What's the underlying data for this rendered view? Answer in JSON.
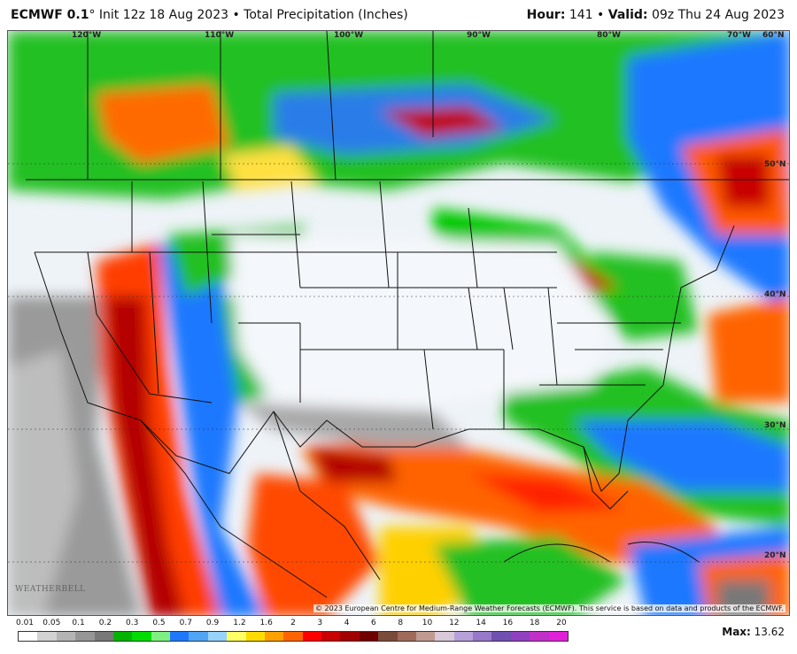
{
  "header": {
    "model": "ECMWF 0.1",
    "init": "° Init 12z 18 Aug 2023 • Total Precipitation (Inches)",
    "hour_label": "Hour:",
    "hour_value": " 141 • ",
    "valid_label": "Valid:",
    "valid_value": " 09z Thu 24 Aug 2023"
  },
  "map": {
    "lon_labels": [
      "120°W",
      "110°W",
      "100°W",
      "90°W",
      "80°W",
      "70°W",
      "60°N"
    ],
    "lat_labels": [
      "50°N",
      "40°N",
      "30°N",
      "20°N"
    ],
    "copyright": "© 2023 European Centre for Medium-Range Weather Forecasts (ECMWF). This service is based on data and products of the ECMWF.",
    "logo": "WEATHERBELL"
  },
  "legend": {
    "labels": [
      "0.01",
      "0.05",
      "0.1",
      "0.2",
      "0.3",
      "0.5",
      "0.7",
      "0.9",
      "1.2",
      "1.6",
      "2",
      "3",
      "4",
      "6",
      "8",
      "10",
      "12",
      "14",
      "16",
      "18",
      "20"
    ],
    "colors": [
      "#ffffff",
      "#d2d2d2",
      "#b4b4b4",
      "#969696",
      "#787878",
      "#00b400",
      "#00dc00",
      "#7ff07f",
      "#1e78ff",
      "#50a5f5",
      "#96d2fa",
      "#ffff64",
      "#ffdc00",
      "#ffa000",
      "#ff6400",
      "#ff0000",
      "#c80000",
      "#a00000",
      "#6e0000",
      "#7a4a3a",
      "#a06a5a",
      "#c09a90",
      "#d8c8d8",
      "#b8a0d8",
      "#9878c8",
      "#7050b0",
      "#9040c0",
      "#c030c8",
      "#e020d8"
    ]
  },
  "max": {
    "label": "Max:",
    "value": " 13.62"
  }
}
